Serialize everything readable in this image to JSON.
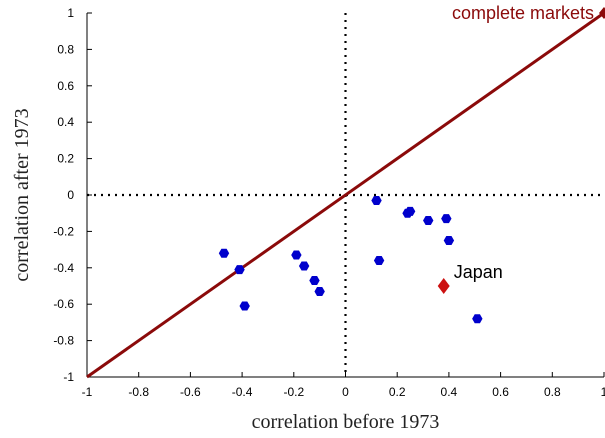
{
  "chart_data": {
    "type": "scatter",
    "title": "",
    "xlabel": "correlation before 1973",
    "ylabel": "correlation after 1973",
    "xlim": [
      -1,
      1
    ],
    "ylim": [
      -1,
      1
    ],
    "x_ticks": [
      "-1",
      "-0.8",
      "-0.6",
      "-0.4",
      "-0.2",
      "0",
      "0.2",
      "0.4",
      "0.6",
      "0.8",
      "1"
    ],
    "y_ticks": [
      "-1",
      "-0.8",
      "-0.6",
      "-0.4",
      "-0.2",
      "0",
      "0.2",
      "0.4",
      "0.6",
      "0.8",
      "1"
    ],
    "grid": false,
    "reference_lines": {
      "x_zero": "dotted",
      "y_zero": "dotted"
    },
    "series": [
      {
        "marker": "hexagon",
        "color": "#0000cc",
        "points": [
          [
            -0.47,
            -0.32
          ],
          [
            -0.41,
            -0.41
          ],
          [
            -0.39,
            -0.61
          ],
          [
            -0.19,
            -0.33
          ],
          [
            -0.16,
            -0.39
          ],
          [
            -0.12,
            -0.47
          ],
          [
            -0.1,
            -0.53
          ],
          [
            0.12,
            -0.03
          ],
          [
            0.13,
            -0.36
          ],
          [
            0.24,
            -0.1
          ],
          [
            0.25,
            -0.09
          ],
          [
            0.32,
            -0.14
          ],
          [
            0.39,
            -0.13
          ],
          [
            0.4,
            -0.25
          ],
          [
            0.51,
            -0.68
          ]
        ]
      }
    ],
    "highlight": {
      "label": "Japan",
      "x": 0.38,
      "y": -0.5,
      "color": "#cc1111",
      "marker": "diamond"
    },
    "diagonal": {
      "label": "complete markets",
      "color": "#8b0a0a",
      "from": [
        -1,
        -1
      ],
      "to": [
        1,
        1
      ]
    }
  }
}
